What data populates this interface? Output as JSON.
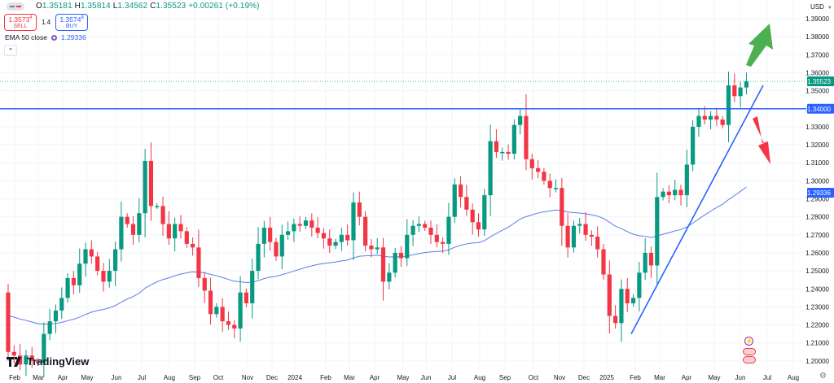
{
  "header": {
    "ohlc": [
      {
        "k": "O",
        "v": "1.35181"
      },
      {
        "k": "H",
        "v": "1.35814"
      },
      {
        "k": "L",
        "v": "1.34562"
      },
      {
        "k": "C",
        "v": "1.35523"
      }
    ],
    "change": "+0.00261 (+0.19%)"
  },
  "trade": {
    "sell_price": "1.3573",
    "sell_sup": "4",
    "sell_label": "SELL",
    "spread": "1.4",
    "buy_price": "1.3574",
    "buy_sup": "8",
    "buy_label": "BUY"
  },
  "indicator": {
    "label": "EMA 50 close",
    "value": "1.29336"
  },
  "currency": "USD",
  "brand": "TradingView",
  "colors": {
    "up": "#089981",
    "down": "#f23645",
    "ema": "#5b7be8",
    "line": "#2962ff",
    "arrow_up": "#4caf50",
    "arrow_down": "#f23645"
  },
  "chart_data": {
    "type": "candlestick",
    "interval": "weekly",
    "ylim": [
      1.195,
      1.395
    ],
    "grid": true,
    "y_ticks": [
      "1.39000",
      "1.38000",
      "1.37000",
      "1.36000",
      "1.35000",
      "1.34000",
      "1.33000",
      "1.32000",
      "1.31000",
      "1.30000",
      "1.29000",
      "1.28000",
      "1.27000",
      "1.26000",
      "1.25000",
      "1.24000",
      "1.23000",
      "1.22000",
      "1.21000",
      "1.20000"
    ],
    "x_ticks": [
      "Feb",
      "Mar",
      "Apr",
      "May",
      "Jun",
      "Jul",
      "Aug",
      "Sep",
      "Oct",
      "Nov",
      "Dec",
      "2024",
      "Feb",
      "Mar",
      "Apr",
      "May",
      "Jun",
      "Jul",
      "Aug",
      "Sep",
      "Oct",
      "Nov",
      "Dec",
      "2025",
      "Feb",
      "Mar",
      "Apr",
      "May",
      "Jun",
      "Jul",
      "Aug"
    ],
    "first_open": 1.238,
    "closes": [
      1.205,
      1.203,
      1.198,
      1.203,
      1.2,
      1.199,
      1.215,
      1.222,
      1.228,
      1.235,
      1.246,
      1.242,
      1.254,
      1.262,
      1.258,
      1.25,
      1.244,
      1.25,
      1.262,
      1.28,
      1.276,
      1.27,
      1.282,
      1.311,
      1.286,
      1.286,
      1.276,
      1.268,
      1.276,
      1.272,
      1.265,
      1.263,
      1.246,
      1.239,
      1.226,
      1.23,
      1.222,
      1.22,
      1.218,
      1.238,
      1.232,
      1.25,
      1.265,
      1.274,
      1.266,
      1.258,
      1.27,
      1.272,
      1.276,
      1.275,
      1.278,
      1.274,
      1.271,
      1.268,
      1.264,
      1.266,
      1.27,
      1.267,
      1.288,
      1.28,
      1.264,
      1.262,
      1.263,
      1.244,
      1.249,
      1.26,
      1.257,
      1.27,
      1.275,
      1.276,
      1.274,
      1.27,
      1.266,
      1.265,
      1.28,
      1.298,
      1.291,
      1.284,
      1.277,
      1.273,
      1.292,
      1.322,
      1.316,
      1.316,
      1.315,
      1.331,
      1.336,
      1.312,
      1.307,
      1.305,
      1.3,
      1.296,
      1.296,
      1.275,
      1.263,
      1.275,
      1.276,
      1.27,
      1.269,
      1.262,
      1.248,
      1.225,
      1.221,
      1.24,
      1.232,
      1.235,
      1.249,
      1.26,
      1.253,
      1.291,
      1.294,
      1.292,
      1.295,
      1.292,
      1.309,
      1.33,
      1.336,
      1.334,
      1.336,
      1.334,
      1.331,
      1.353,
      1.347,
      1.3518,
      1.35523
    ],
    "ema_period": 50,
    "last_price": "1.35523",
    "ema_last": "1.29336",
    "horizontal_level": "1.34000",
    "trendline": {
      "from": [
        "2025-01-20",
        1.215
      ],
      "to": [
        "2025-07-07",
        1.353
      ]
    }
  }
}
